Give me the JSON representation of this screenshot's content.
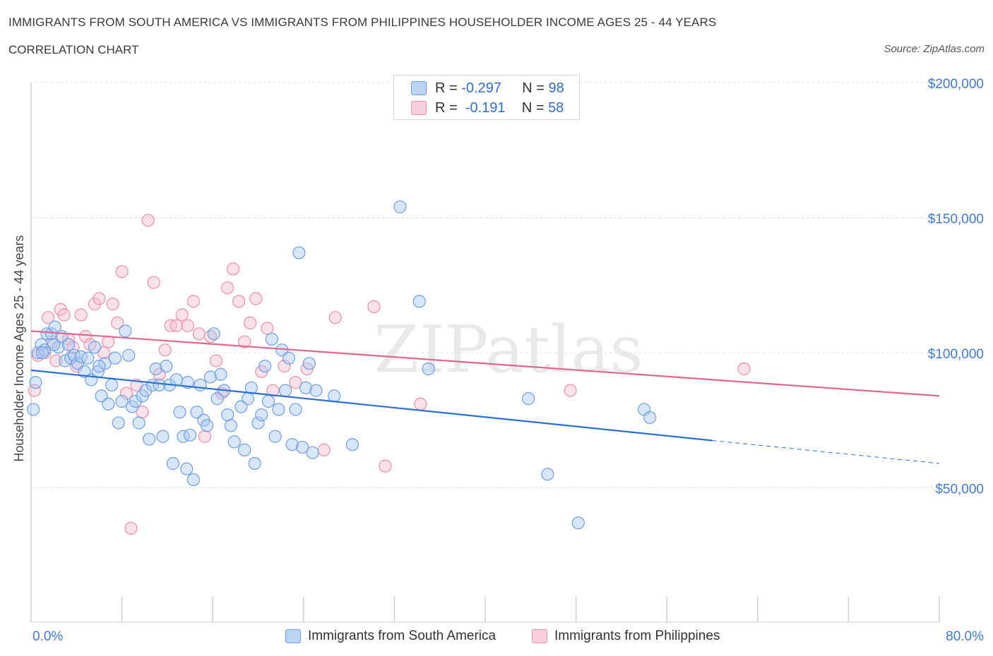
{
  "title": "IMMIGRANTS FROM SOUTH AMERICA VS IMMIGRANTS FROM PHILIPPINES HOUSEHOLDER INCOME AGES 25 - 44 YEARS",
  "subtitle": "CORRELATION CHART",
  "source": "Source: ZipAtlas.com",
  "watermark": "ZIPatlas",
  "colors": {
    "blue_fill": "#a9c8f2",
    "blue_stroke": "#6f9fe0",
    "blue_line": "#2a6fd6",
    "pink_fill": "#f6bccd",
    "pink_stroke": "#eb8fab",
    "pink_line": "#e0668f",
    "axis_text": "#3f7ad6",
    "grid": "#dcdcdc"
  },
  "legend": {
    "r_label": "R =",
    "n_label": "N =",
    "blue": {
      "r": "-0.297",
      "n": "98"
    },
    "pink": {
      "r": "-0.191",
      "n": "58"
    }
  },
  "chart_data": {
    "type": "scatter",
    "xlabel": "",
    "ylabel": "Householder Income Ages 25 - 44 years",
    "xlim": [
      0,
      80
    ],
    "ylim": [
      0,
      200000
    ],
    "x_tick_labels": [
      "0.0%",
      "80.0%"
    ],
    "y_tick_labels": [
      "$200,000",
      "$150,000",
      "$100,000",
      "$50,000"
    ],
    "y_ticks": [
      200000,
      150000,
      100000,
      50000
    ],
    "grid": true,
    "series": [
      {
        "name": "Immigrants from South America",
        "color": "#6f9fe0",
        "trend": {
          "x0": 0,
          "y0": 93500,
          "x1": 60,
          "y1": 67500,
          "dash_to_x": 80,
          "dash_to_y": 59000
        },
        "points": [
          [
            0.2,
            79000
          ],
          [
            0.4,
            89000
          ],
          [
            0.6,
            100000
          ],
          [
            0.9,
            103000
          ],
          [
            1.2,
            101000
          ],
          [
            1.4,
            107000
          ],
          [
            1.8,
            107000
          ],
          [
            2.1,
            109500
          ],
          [
            2.4,
            102000
          ],
          [
            2.7,
            106000
          ],
          [
            3.0,
            97000
          ],
          [
            3.3,
            103000
          ],
          [
            3.5,
            98000
          ],
          [
            3.8,
            99000
          ],
          [
            4.1,
            96000
          ],
          [
            4.4,
            98500
          ],
          [
            4.7,
            93000
          ],
          [
            5.0,
            98000
          ],
          [
            5.3,
            90000
          ],
          [
            5.6,
            102000
          ],
          [
            5.9,
            93000
          ],
          [
            6.2,
            84000
          ],
          [
            6.5,
            96000
          ],
          [
            6.8,
            81000
          ],
          [
            7.1,
            88000
          ],
          [
            7.4,
            98000
          ],
          [
            7.7,
            74000
          ],
          [
            8.0,
            82000
          ],
          [
            8.3,
            108000
          ],
          [
            8.6,
            99000
          ],
          [
            8.9,
            80000
          ],
          [
            9.2,
            82000
          ],
          [
            9.5,
            74000
          ],
          [
            9.8,
            84000
          ],
          [
            10.1,
            86000
          ],
          [
            10.4,
            68000
          ],
          [
            10.7,
            88000
          ],
          [
            11.0,
            94000
          ],
          [
            11.3,
            88000
          ],
          [
            11.6,
            69000
          ],
          [
            11.9,
            95000
          ],
          [
            12.2,
            88000
          ],
          [
            12.5,
            59000
          ],
          [
            12.8,
            90000
          ],
          [
            13.1,
            78000
          ],
          [
            13.4,
            69000
          ],
          [
            13.7,
            57000
          ],
          [
            14.0,
            69500
          ],
          [
            14.3,
            53000
          ],
          [
            14.6,
            78000
          ],
          [
            14.9,
            88000
          ],
          [
            15.2,
            75000
          ],
          [
            15.5,
            73000
          ],
          [
            15.8,
            91000
          ],
          [
            16.1,
            107000
          ],
          [
            16.4,
            83000
          ],
          [
            16.7,
            92000
          ],
          [
            17.0,
            86000
          ],
          [
            17.3,
            77000
          ],
          [
            17.6,
            73000
          ],
          [
            17.9,
            67000
          ],
          [
            18.5,
            80000
          ],
          [
            18.8,
            64000
          ],
          [
            19.1,
            83000
          ],
          [
            19.4,
            87000
          ],
          [
            19.7,
            59000
          ],
          [
            20.0,
            74000
          ],
          [
            20.3,
            77000
          ],
          [
            20.6,
            95000
          ],
          [
            20.9,
            82000
          ],
          [
            21.2,
            105000
          ],
          [
            21.5,
            69000
          ],
          [
            21.8,
            79000
          ],
          [
            22.1,
            101000
          ],
          [
            22.4,
            86000
          ],
          [
            22.7,
            98000
          ],
          [
            23.0,
            66000
          ],
          [
            23.3,
            79000
          ],
          [
            23.6,
            137000
          ],
          [
            23.9,
            65000
          ],
          [
            24.2,
            87000
          ],
          [
            24.5,
            96000
          ],
          [
            24.8,
            63000
          ],
          [
            25.1,
            86000
          ],
          [
            26.7,
            84000
          ],
          [
            28.3,
            66000
          ],
          [
            32.5,
            154000
          ],
          [
            34.2,
            119000
          ],
          [
            35.0,
            94000
          ],
          [
            43.8,
            83000
          ],
          [
            45.5,
            55000
          ],
          [
            48.2,
            37000
          ],
          [
            54.0,
            79000
          ],
          [
            54.5,
            76000
          ],
          [
            1.0,
            100000
          ],
          [
            2.0,
            103000
          ],
          [
            6.0,
            95000
          ],
          [
            13.8,
            89000
          ]
        ]
      },
      {
        "name": "Immigrants from Philippines",
        "color": "#eb8fab",
        "trend": {
          "x0": 0,
          "y0": 108000,
          "x1": 80,
          "y1": 84000
        },
        "points": [
          [
            0.3,
            86000
          ],
          [
            0.6,
            99000
          ],
          [
            1.2,
            100000
          ],
          [
            1.5,
            113000
          ],
          [
            1.9,
            104000
          ],
          [
            2.2,
            97000
          ],
          [
            2.6,
            116000
          ],
          [
            2.9,
            114000
          ],
          [
            3.3,
            105000
          ],
          [
            3.7,
            102000
          ],
          [
            4.0,
            95000
          ],
          [
            4.4,
            114000
          ],
          [
            4.8,
            106000
          ],
          [
            5.2,
            103000
          ],
          [
            5.6,
            118000
          ],
          [
            6.0,
            120000
          ],
          [
            6.4,
            100000
          ],
          [
            6.8,
            104000
          ],
          [
            7.2,
            118000
          ],
          [
            7.6,
            111000
          ],
          [
            8.0,
            130000
          ],
          [
            8.4,
            85000
          ],
          [
            8.8,
            35000
          ],
          [
            9.3,
            88000
          ],
          [
            9.8,
            78000
          ],
          [
            10.3,
            149000
          ],
          [
            10.8,
            126000
          ],
          [
            11.3,
            92000
          ],
          [
            11.8,
            101000
          ],
          [
            12.3,
            110000
          ],
          [
            12.8,
            110000
          ],
          [
            13.3,
            114000
          ],
          [
            13.8,
            110000
          ],
          [
            14.3,
            119000
          ],
          [
            14.8,
            107000
          ],
          [
            15.3,
            69000
          ],
          [
            15.8,
            106000
          ],
          [
            16.3,
            97000
          ],
          [
            16.8,
            85000
          ],
          [
            17.3,
            124000
          ],
          [
            17.8,
            131000
          ],
          [
            18.3,
            119000
          ],
          [
            18.8,
            104000
          ],
          [
            19.3,
            111000
          ],
          [
            19.8,
            120000
          ],
          [
            20.3,
            93000
          ],
          [
            20.8,
            109000
          ],
          [
            21.3,
            86000
          ],
          [
            22.3,
            95000
          ],
          [
            23.3,
            89000
          ],
          [
            24.3,
            94000
          ],
          [
            25.8,
            64000
          ],
          [
            26.8,
            113000
          ],
          [
            30.2,
            117000
          ],
          [
            31.2,
            58000
          ],
          [
            34.3,
            81000
          ],
          [
            47.5,
            86000
          ],
          [
            62.8,
            94000
          ]
        ]
      }
    ]
  },
  "bottom_legend": {
    "blue_label": "Immigrants from South America",
    "pink_label": "Immigrants from Philippines"
  }
}
